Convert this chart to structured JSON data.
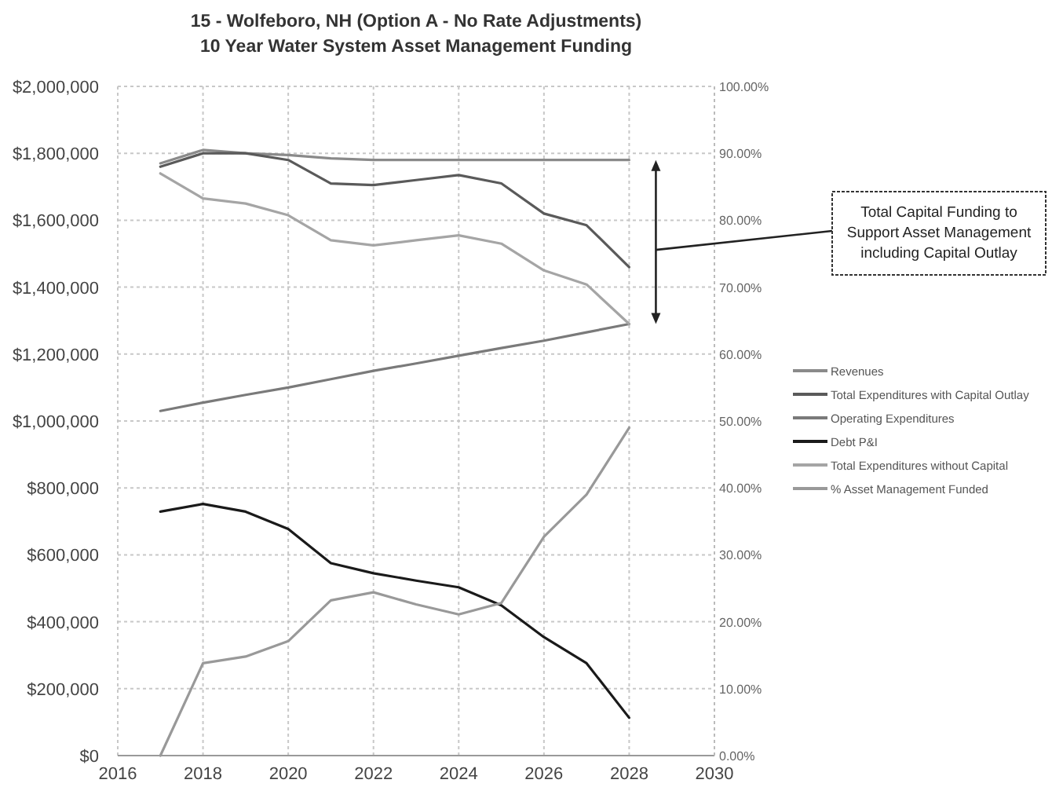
{
  "chart_data": {
    "type": "line",
    "title": "15 - Wolfeboro, NH (Option A - No Rate Adjustments)",
    "subtitle": "10 Year Water System Asset Management Funding",
    "x": [
      2017,
      2018,
      2019,
      2020,
      2021,
      2022,
      2023,
      2024,
      2025,
      2026,
      2027,
      2028
    ],
    "series": [
      {
        "name": "Revenues",
        "color": "#8a8a8a",
        "values": [
          1770000,
          1810000,
          1800000,
          1795000,
          1785000,
          1780000,
          1780000,
          1780000,
          1780000,
          1780000,
          1780000,
          1780000
        ]
      },
      {
        "name": "Total Expenditures with Capital Outlay",
        "color": "#5a5a5a",
        "values": [
          1760000,
          1800000,
          1800000,
          1780000,
          1710000,
          1705000,
          1720000,
          1735000,
          1710000,
          1620000,
          1585000,
          1460000
        ]
      },
      {
        "name": "Operating Expenditures",
        "color": "#7a7a7a",
        "values": [
          1030000,
          1055000,
          1078000,
          1100000,
          1125000,
          1150000,
          1172000,
          1195000,
          1218000,
          1240000,
          1265000,
          1290000
        ]
      },
      {
        "name": "Debt P&I",
        "color": "#1a1a1a",
        "values": [
          729000,
          752000,
          729000,
          677000,
          575000,
          545000,
          523000,
          503000,
          449000,
          354000,
          276000,
          113000
        ]
      },
      {
        "name": "Total Expenditures without Capital",
        "color": "#a5a5a5",
        "values": [
          1740000,
          1665000,
          1650000,
          1615000,
          1540000,
          1525000,
          1540000,
          1555000,
          1530000,
          1450000,
          1408000,
          1290000
        ]
      },
      {
        "name": "% Asset Management Funded",
        "color": "#999999",
        "axis": "y2",
        "values": [
          0,
          13.8,
          14.8,
          17.1,
          23.2,
          24.4,
          22.6,
          21.1,
          22.8,
          32.7,
          39,
          49
        ]
      }
    ],
    "xlim": [
      2016,
      2030
    ],
    "xticks": [
      2016,
      2018,
      2020,
      2022,
      2024,
      2026,
      2028,
      2030
    ],
    "ylim": [
      0,
      2000000
    ],
    "yticks": [
      {
        "value": 0,
        "label": "$0"
      },
      {
        "value": 200000,
        "label": "$200,000"
      },
      {
        "value": 400000,
        "label": "$400,000"
      },
      {
        "value": 600000,
        "label": "$600,000"
      },
      {
        "value": 800000,
        "label": "$800,000"
      },
      {
        "value": 1000000,
        "label": "$1,000,000"
      },
      {
        "value": 1200000,
        "label": "$1,200,000"
      },
      {
        "value": 1400000,
        "label": "$1,400,000"
      },
      {
        "value": 1600000,
        "label": "$1,600,000"
      },
      {
        "value": 1800000,
        "label": "$1,800,000"
      },
      {
        "value": 2000000,
        "label": "$2,000,000"
      }
    ],
    "y2lim": [
      0,
      100
    ],
    "y2ticks": [
      {
        "value": 0,
        "label": "0.00%"
      },
      {
        "value": 10,
        "label": "10.00%"
      },
      {
        "value": 20,
        "label": "20.00%"
      },
      {
        "value": 30,
        "label": "30.00%"
      },
      {
        "value": 40,
        "label": "40.00%"
      },
      {
        "value": 50,
        "label": "50.00%"
      },
      {
        "value": 60,
        "label": "60.00%"
      },
      {
        "value": 70,
        "label": "70.00%"
      },
      {
        "value": 80,
        "label": "80.00%"
      },
      {
        "value": 90,
        "label": "90.00%"
      },
      {
        "value": 100,
        "label": "100.00%"
      }
    ],
    "grid": true,
    "legend": "right",
    "marker": "none",
    "line_style": "solid",
    "annotations": [
      "Total Capital Funding to Support Asset Management including Capital Outlay"
    ]
  }
}
